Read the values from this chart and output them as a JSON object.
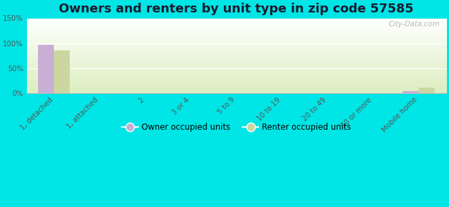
{
  "title": "Owners and renters by unit type in zip code 57585",
  "categories": [
    "1, detached",
    "1, attached",
    "2",
    "3 or 4",
    "5 to 9",
    "10 to 19",
    "20 to 49",
    "50 or more",
    "Mobile home"
  ],
  "owner_values": [
    96,
    0,
    0,
    0,
    0,
    0,
    0,
    0,
    4
  ],
  "renter_values": [
    86,
    0,
    0,
    0,
    0,
    0,
    0,
    0,
    11
  ],
  "owner_color": "#c9afd4",
  "renter_color": "#ccd6a0",
  "ylim": [
    0,
    150
  ],
  "yticks": [
    0,
    50,
    100,
    150
  ],
  "ytick_labels": [
    "0%",
    "50%",
    "100%",
    "150%"
  ],
  "background_color": "#00e5e5",
  "bar_width": 0.35,
  "watermark": "City-Data.com",
  "legend_labels": [
    "Owner occupied units",
    "Renter occupied units"
  ],
  "title_fontsize": 13,
  "axis_fontsize": 7.5
}
